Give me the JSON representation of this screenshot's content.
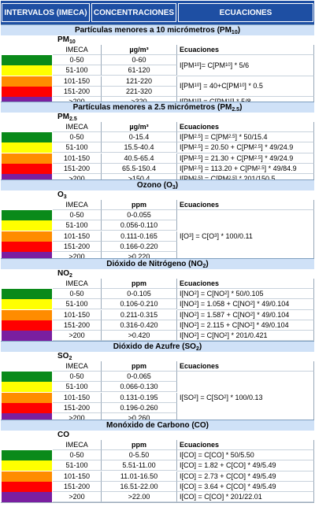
{
  "header": {
    "col1": "INTERVALOS (IMECA)",
    "col2": "CONCENTRACIONES",
    "col3": "ECUACIONES"
  },
  "columns": {
    "imeca": "IMECA",
    "eq": "Ecuaciones"
  },
  "colors": {
    "green": "#0a8a1a",
    "yellow": "#ffff00",
    "orange": "#ff8c00",
    "red": "#ff0000",
    "purple": "#7a1fa0"
  },
  "ranges": [
    "0-50",
    "51-100",
    "101-150",
    "151-200",
    ">200"
  ],
  "sections": [
    {
      "title": "Partículas menores a 10 micrómetros (PM10)",
      "subtitle": "PM10",
      "unit": "µg/m³",
      "conc": [
        "0-60",
        "61-120",
        "121-220",
        "221-320",
        ">320"
      ],
      "eq": [
        "I[PM10]= C[PM10] * 5/6",
        "I[PM10] = 40+C[PM10] * 0.5",
        "I[PM10] = C[PM10] * 5/8"
      ]
    },
    {
      "title": "Partículas menores a 2.5 micrómetros (PM2.5)",
      "subtitle": "PM2.5",
      "unit": "µg/m³",
      "conc": [
        "0-15.4",
        "15.5-40.4",
        "40.5-65.4",
        "65.5-150.4",
        ">150.4"
      ],
      "eq": [
        "I[PM2.5] = C[PM2.5] * 50/15.4",
        "I[PM2.5] = 20.50 + C[PM2.5] * 49/24.9",
        "I[PM2.5] = 21.30 + C[PM2.5] * 49/24.9",
        "I[PM2.5] = 113.20 + C[PM2.5] * 49/84.9",
        "I[PM2.5] = C[PM2.5] * 201/150.5"
      ]
    },
    {
      "title": "Ozono (O3)",
      "subtitle": "O3",
      "unit": "ppm",
      "conc": [
        "0-0.055",
        "0.056-0.110",
        "0.111-0.165",
        "0.166-0.220",
        ">0.220"
      ],
      "eq": [
        "I[O3] = C[O3] * 100/0.11"
      ]
    },
    {
      "title": "Dióxido de Nitrógeno (NO2)",
      "subtitle": "NO2",
      "unit": "ppm",
      "conc": [
        "0-0.105",
        "0.106-0.210",
        "0.211-0.315",
        "0.316-0.420",
        ">0.420"
      ],
      "eq": [
        "I[NO2] = C[NO2] * 50/0.105",
        "I[NO2] = 1.058 + C[NO2] * 49/0.104",
        "I[NO2] = 1.587 + C[NO2] * 49/0.104",
        "I[NO2] = 2.115 + C[NO2] * 49/0.104",
        "I[NO2] = C[NO2] * 201/0.421"
      ]
    },
    {
      "title": "Dióxido de Azufre (SO2)",
      "subtitle": "SO2",
      "unit": "ppm",
      "conc": [
        "0-0.065",
        "0.066-0.130",
        "0.131-0.195",
        "0.196-0.260",
        ">0.260"
      ],
      "eq": [
        "I[SO2] = C[SO2] * 100/0.13"
      ]
    },
    {
      "title": "Monóxido de Carbono (CO)",
      "subtitle": "CO",
      "unit": "ppm",
      "conc": [
        "0-5.50",
        "5.51-11.00",
        "11.01-16.50",
        "16.51-22.00",
        ">22.00"
      ],
      "eq": [
        "I[CO] = C[CO] * 50/5.50",
        "I[CO] = 1.82 + C[CO] * 49/5.49",
        "I[CO] = 2.73 + C[CO] * 49/5.49",
        "I[CO] = 3.64 + C[CO] * 49/5.49",
        "I[CO] = C[CO] * 201/22.01"
      ]
    }
  ]
}
